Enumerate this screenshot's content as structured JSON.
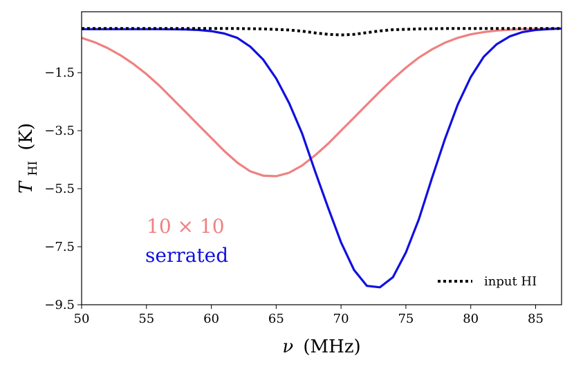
{
  "chart_data": {
    "type": "line",
    "xlabel_symbol": "ν",
    "xlabel_unit": "(MHz)",
    "ylabel_symbol": "T",
    "ylabel_subscript": "HI",
    "ylabel_unit": "(K)",
    "xlim": [
      50,
      87
    ],
    "ylim": [
      -9.5,
      0.6
    ],
    "x_ticks": [
      50,
      55,
      60,
      65,
      70,
      75,
      80,
      85
    ],
    "y_ticks": [
      -9.5,
      -7.5,
      -5.5,
      -3.5,
      -1.5
    ],
    "y_tick_labels": [
      "−9.5",
      "−7.5",
      "−5.5",
      "−3.5",
      "−1.5"
    ],
    "series": [
      {
        "name": "10 × 10",
        "color": "#f08080",
        "style": "solid",
        "x": [
          50,
          51,
          52,
          53,
          54,
          55,
          56,
          57,
          58,
          59,
          60,
          61,
          62,
          63,
          64,
          65,
          66,
          67,
          68,
          69,
          70,
          71,
          72,
          73,
          74,
          75,
          76,
          77,
          78,
          79,
          80,
          81,
          82,
          83,
          84,
          85,
          86,
          87
        ],
        "y": [
          -0.3,
          -0.45,
          -0.65,
          -0.9,
          -1.2,
          -1.55,
          -1.95,
          -2.4,
          -2.85,
          -3.3,
          -3.75,
          -4.2,
          -4.6,
          -4.9,
          -5.05,
          -5.07,
          -4.95,
          -4.7,
          -4.35,
          -3.95,
          -3.5,
          -3.05,
          -2.6,
          -2.15,
          -1.72,
          -1.33,
          -0.98,
          -0.7,
          -0.47,
          -0.3,
          -0.18,
          -0.1,
          -0.05,
          -0.02,
          0.0,
          0.01,
          0.02,
          0.02
        ]
      },
      {
        "name": "serrated",
        "color": "#1010e0",
        "style": "solid",
        "x": [
          50,
          52,
          54,
          56,
          58,
          59,
          60,
          61,
          62,
          63,
          64,
          65,
          66,
          67,
          68,
          69,
          70,
          71,
          72,
          73,
          74,
          75,
          76,
          77,
          78,
          79,
          80,
          81,
          82,
          83,
          84,
          85,
          86,
          87
        ],
        "y": [
          0.0,
          0.0,
          0.0,
          0.0,
          -0.01,
          -0.03,
          -0.07,
          -0.15,
          -0.3,
          -0.6,
          -1.05,
          -1.7,
          -2.55,
          -3.6,
          -4.9,
          -6.15,
          -7.35,
          -8.3,
          -8.85,
          -8.9,
          -8.55,
          -7.7,
          -6.55,
          -5.15,
          -3.8,
          -2.6,
          -1.65,
          -0.95,
          -0.52,
          -0.25,
          -0.1,
          -0.03,
          0.0,
          0.02
        ]
      },
      {
        "name": "input HI",
        "color": "#000000",
        "style": "dotted",
        "x": [
          50,
          55,
          60,
          62,
          64,
          66,
          67,
          68,
          69,
          70,
          71,
          72,
          73,
          74,
          76,
          78,
          80,
          85,
          87
        ],
        "y": [
          0.02,
          0.02,
          0.02,
          0.02,
          0.01,
          -0.03,
          -0.07,
          -0.13,
          -0.18,
          -0.2,
          -0.18,
          -0.12,
          -0.06,
          -0.02,
          0.01,
          0.02,
          0.02,
          0.02,
          0.02
        ]
      }
    ],
    "annotations": [
      {
        "text": "10 × 10",
        "color": "#f08080"
      },
      {
        "text": "serrated",
        "color": "#1010e0"
      }
    ],
    "legend": {
      "placement": "lower-right",
      "entries": [
        "input HI"
      ]
    },
    "grid": false
  }
}
